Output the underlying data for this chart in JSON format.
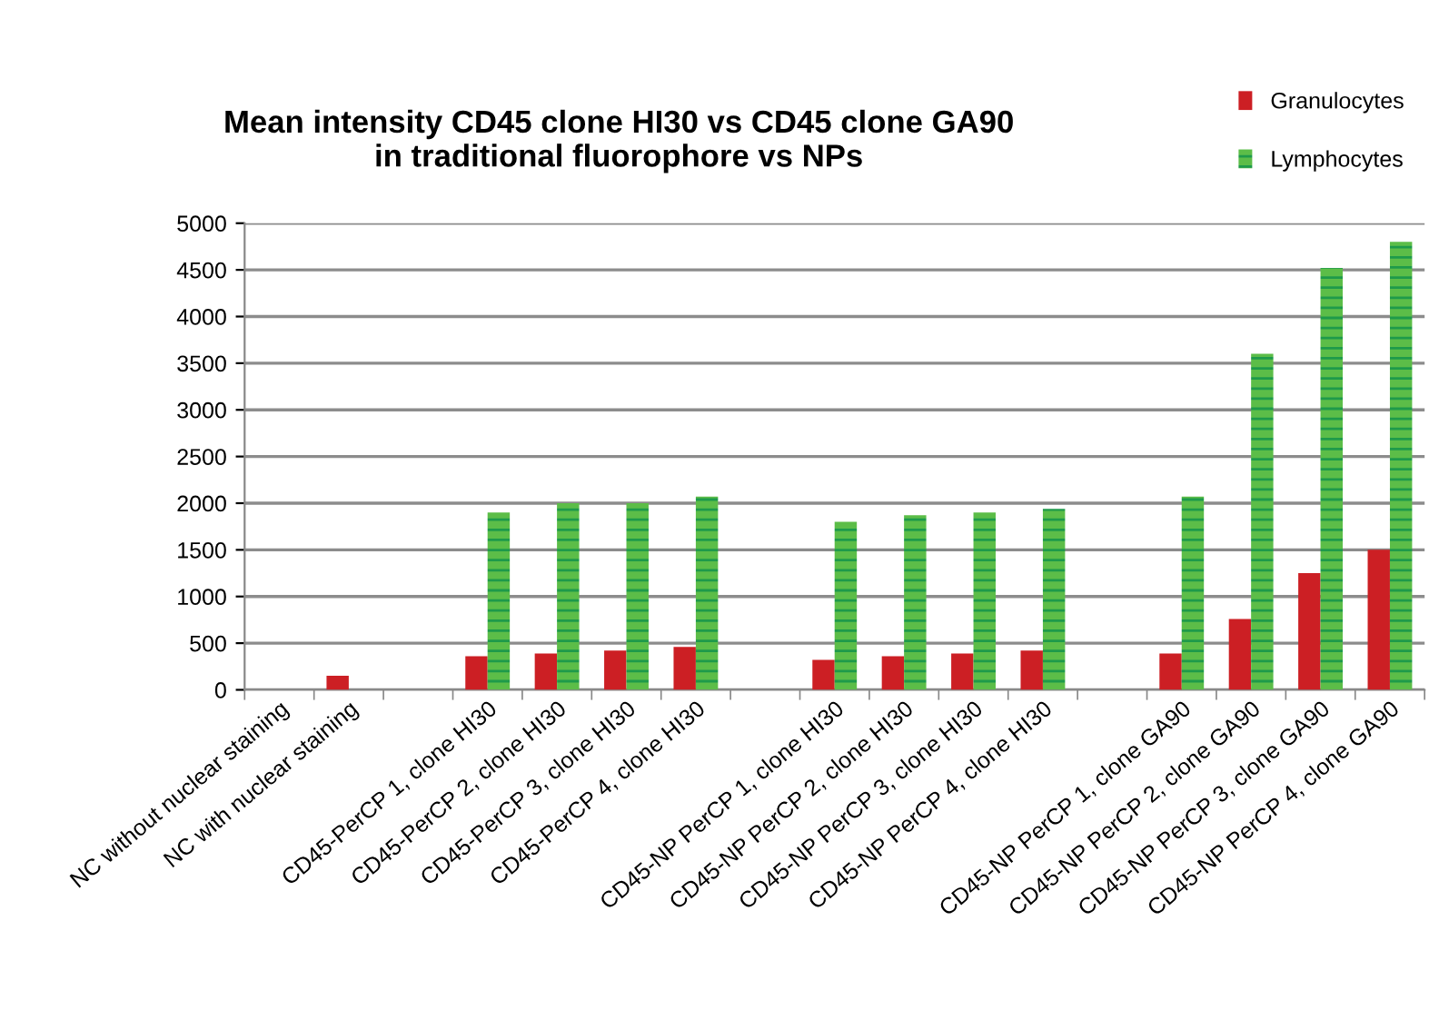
{
  "chart_data": {
    "type": "bar",
    "title": "Mean intensity CD45 clone HI30 vs CD45 clone GA90\nin traditional fluorophore vs NPs",
    "categories": [
      "NC without nuclear staining",
      "NC with nuclear staining",
      null,
      "CD45-PerCP 1, clone HI30",
      "CD45-PerCP 2, clone HI30",
      "CD45-PerCP 3, clone HI30",
      "CD45-PerCP 4, clone HI30",
      null,
      "CD45-NP PerCP 1, clone HI30",
      "CD45-NP PerCP 2, clone HI30",
      "CD45-NP PerCP 3, clone HI30",
      "CD45-NP PerCP 4, clone HI30",
      null,
      "CD45-NP PerCP 1, clone GA90",
      "CD45-NP PerCP 2, clone GA90",
      "CD45-NP PerCP 3, clone GA90",
      "CD45-NP PerCP 4, clone GA90"
    ],
    "series": [
      {
        "name": "Granulocytes",
        "color": "#cc1f24",
        "values": [
          0,
          150,
          null,
          360,
          390,
          420,
          460,
          null,
          320,
          360,
          390,
          420,
          null,
          390,
          760,
          1250,
          1500
        ]
      },
      {
        "name": "Lymphocytes",
        "color": "#5cbd48",
        "values": [
          0,
          0,
          null,
          1900,
          2000,
          2000,
          2070,
          null,
          1800,
          1870,
          1900,
          1940,
          null,
          2070,
          3600,
          4520,
          4800
        ]
      }
    ],
    "ylim": [
      0,
      5000
    ],
    "yticks": [
      0,
      500,
      1000,
      1500,
      2000,
      2500,
      3000,
      3500,
      4000,
      4500,
      5000
    ],
    "grid": "y",
    "legend": "top right"
  }
}
